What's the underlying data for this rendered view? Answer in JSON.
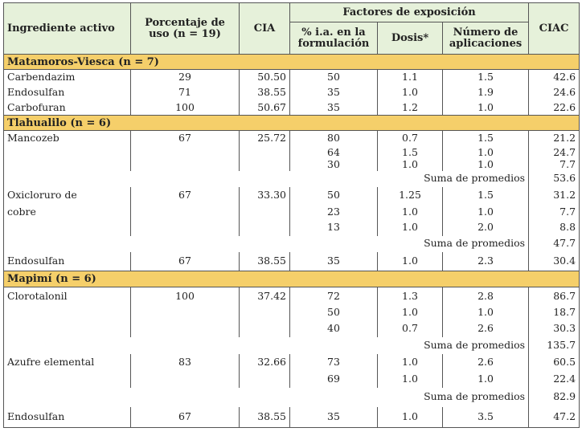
{
  "headers": {
    "ingrediente": "Ingrediente activo",
    "porcentaje": "Porcentaje de uso (n = 19)",
    "cia": "CIA",
    "factores": "Factores de exposición",
    "pct_ia": "% i.a. en la formulación",
    "dosis": "Dosis*",
    "num_aplic": "Número de aplicaciones",
    "ciac": "CIAC"
  },
  "groups": {
    "g1": "Matamoros-Viesca (n = 7)",
    "g2": "Tlahualilo (n = 6)",
    "g3": "Mapimí (n = 6)"
  },
  "suma_label": "Suma de promedios",
  "rows": [
    {
      "name": "Carbendazim",
      "pct": "29",
      "cia": "50.50",
      "ia": "50",
      "dosis": "1.1",
      "aplic": "1.5",
      "ciac": "42.6"
    },
    {
      "name": "Endosulfan",
      "pct": "71",
      "cia": "38.55",
      "ia": "35",
      "dosis": "1.0",
      "aplic": "1.9",
      "ciac": "24.6"
    },
    {
      "name": "Carbofuran",
      "pct": "100",
      "cia": "50.67",
      "ia": "35",
      "dosis": "1.2",
      "aplic": "1.0",
      "ciac": "22.6"
    },
    {
      "name": "Mancozeb",
      "pct": "67",
      "cia": "25.72",
      "ia": "80",
      "dosis": "0.7",
      "aplic": "1.5",
      "ciac": "21.2"
    },
    {
      "name": "",
      "pct": "",
      "cia": "",
      "ia": "64",
      "dosis": "1.5",
      "aplic": "1.0",
      "ciac": "24.7"
    },
    {
      "name": "",
      "pct": "",
      "cia": "",
      "ia": "30",
      "dosis": "1.0",
      "aplic": "1.0",
      "ciac": "7.7"
    },
    {
      "suma": "53.6"
    },
    {
      "name": "Oxicloruro de",
      "pct": "67",
      "cia": "33.30",
      "ia": "50",
      "dosis": "1.25",
      "aplic": "1.5",
      "ciac": "31.2"
    },
    {
      "name": "cobre",
      "pct": "",
      "cia": "",
      "ia": "23",
      "dosis": "1.0",
      "aplic": "1.0",
      "ciac": "7.7"
    },
    {
      "name": "",
      "pct": "",
      "cia": "",
      "ia": "13",
      "dosis": "1.0",
      "aplic": "2.0",
      "ciac": "8.8"
    },
    {
      "suma": "47.7"
    },
    {
      "name": "Endosulfan",
      "pct": "67",
      "cia": "38.55",
      "ia": "35",
      "dosis": "1.0",
      "aplic": "2.3",
      "ciac": "30.4"
    },
    {
      "name": "Clorotalonil",
      "pct": "100",
      "cia": "37.42",
      "ia": "72",
      "dosis": "1.3",
      "aplic": "2.8",
      "ciac": "86.7"
    },
    {
      "name": "",
      "pct": "",
      "cia": "",
      "ia": "50",
      "dosis": "1.0",
      "aplic": "1.0",
      "ciac": "18.7"
    },
    {
      "name": "",
      "pct": "",
      "cia": "",
      "ia": "40",
      "dosis": "0.7",
      "aplic": "2.6",
      "ciac": "30.3"
    },
    {
      "suma": "135.7"
    },
    {
      "name": "Azufre elemental",
      "pct": "83",
      "cia": "32.66",
      "ia": "73",
      "dosis": "1.0",
      "aplic": "2.6",
      "ciac": "60.5"
    },
    {
      "name": "",
      "pct": "",
      "cia": "",
      "ia": "69",
      "dosis": "1.0",
      "aplic": "1.0",
      "ciac": "22.4"
    },
    {
      "suma": "82.9"
    },
    {
      "name": "Endosulfan",
      "pct": "67",
      "cia": "38.55",
      "ia": "35",
      "dosis": "1.0",
      "aplic": "3.5",
      "ciac": "47.2"
    }
  ]
}
